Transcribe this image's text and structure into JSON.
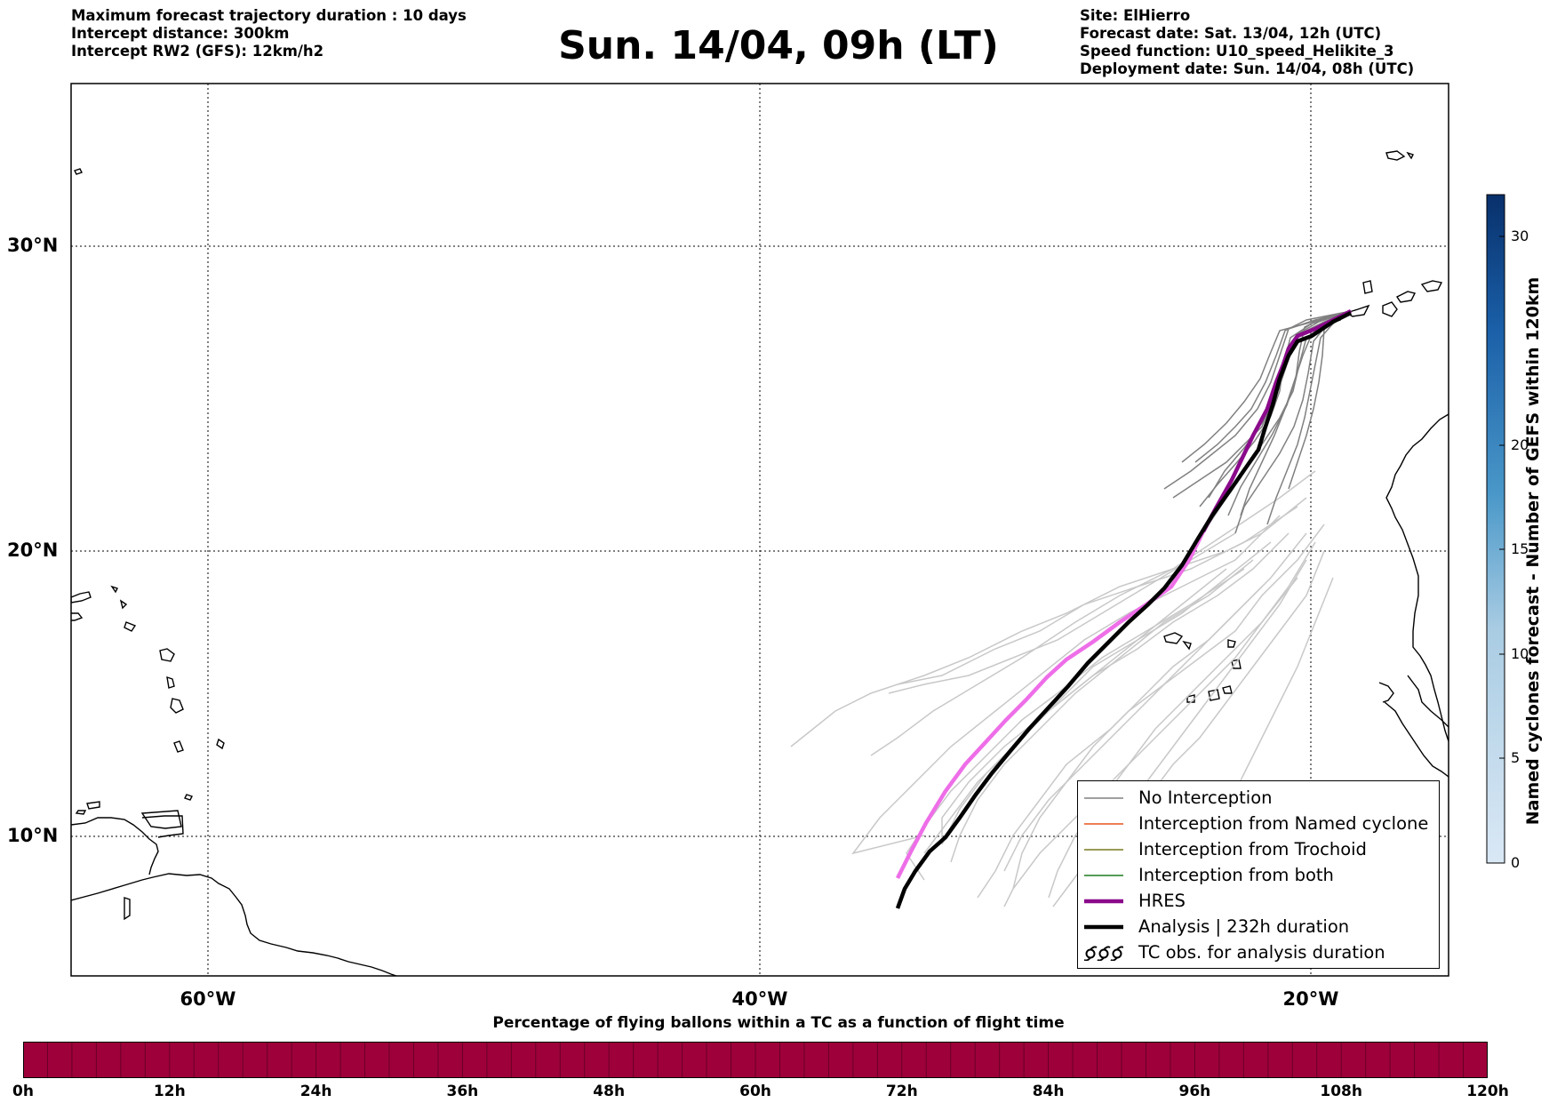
{
  "header": {
    "left": [
      "Maximum forecast trajectory duration : 10 days",
      "Intercept distance: 300km",
      "Intercept RW2 (GFS):  12km/h2"
    ],
    "title": "Sun. 14/04, 09h (LT)",
    "right": [
      "Site: ElHierro",
      "Forecast date: Sat. 13/04, 12h (UTC)",
      "Speed function: U10_speed_Helikite_3",
      "Deployment date: Sun. 14/04, 08h (UTC)"
    ]
  },
  "map": {
    "lat_labels": [
      "30°N",
      "20°N",
      "10°N"
    ],
    "lon_labels": [
      "60°W",
      "40°W",
      "20°W"
    ],
    "extent": {
      "lon_min": -65,
      "lon_max": -15,
      "lat_min": 4.7,
      "lat_max": 35.3
    },
    "gridlines": "dotted",
    "colors": {
      "no_interception": "#808080",
      "named_cyclone": "#e8541e",
      "trochoid": "#7a7a1e",
      "both": "#1e7a1e",
      "hres": "#8b0a8b",
      "hres_early": "#ee6ee8",
      "analysis": "#000000",
      "faded_ensemble": "#c8c8c8"
    }
  },
  "legend": {
    "items": [
      {
        "label": "No Interception",
        "color": "#808080",
        "style": "thin-line"
      },
      {
        "label": "Interception from Named cyclone",
        "color": "#e8541e",
        "style": "thin-line"
      },
      {
        "label": "Interception from Trochoid",
        "color": "#7a7a1e",
        "style": "thin-line"
      },
      {
        "label": "Interception from both",
        "color": "#1e7a1e",
        "style": "thin-line"
      },
      {
        "label": "HRES",
        "color": "#8b0a8b",
        "style": "thick-line"
      },
      {
        "label": "Analysis | 232h duration",
        "color": "#000000",
        "style": "thick-line"
      },
      {
        "label": "TC obs. for analysis duration",
        "color": "#000000",
        "style": "cyclone-icon"
      }
    ]
  },
  "colorbar_right": {
    "title": "Named cyclones forecast - Number of GEFS within 120km",
    "ticks": [
      "0",
      "5",
      "10",
      "15",
      "20",
      "30"
    ],
    "tick_values": [
      0,
      5,
      10,
      15,
      20,
      30
    ],
    "range": [
      0,
      32
    ]
  },
  "colorbar_bottom": {
    "title": "Percentage of flying ballons within a TC as a function of flight time",
    "ticks": [
      "0h",
      "12h",
      "24h",
      "36h",
      "48h",
      "60h",
      "72h",
      "84h",
      "96h",
      "108h",
      "120h"
    ],
    "color": "#9e003a"
  }
}
